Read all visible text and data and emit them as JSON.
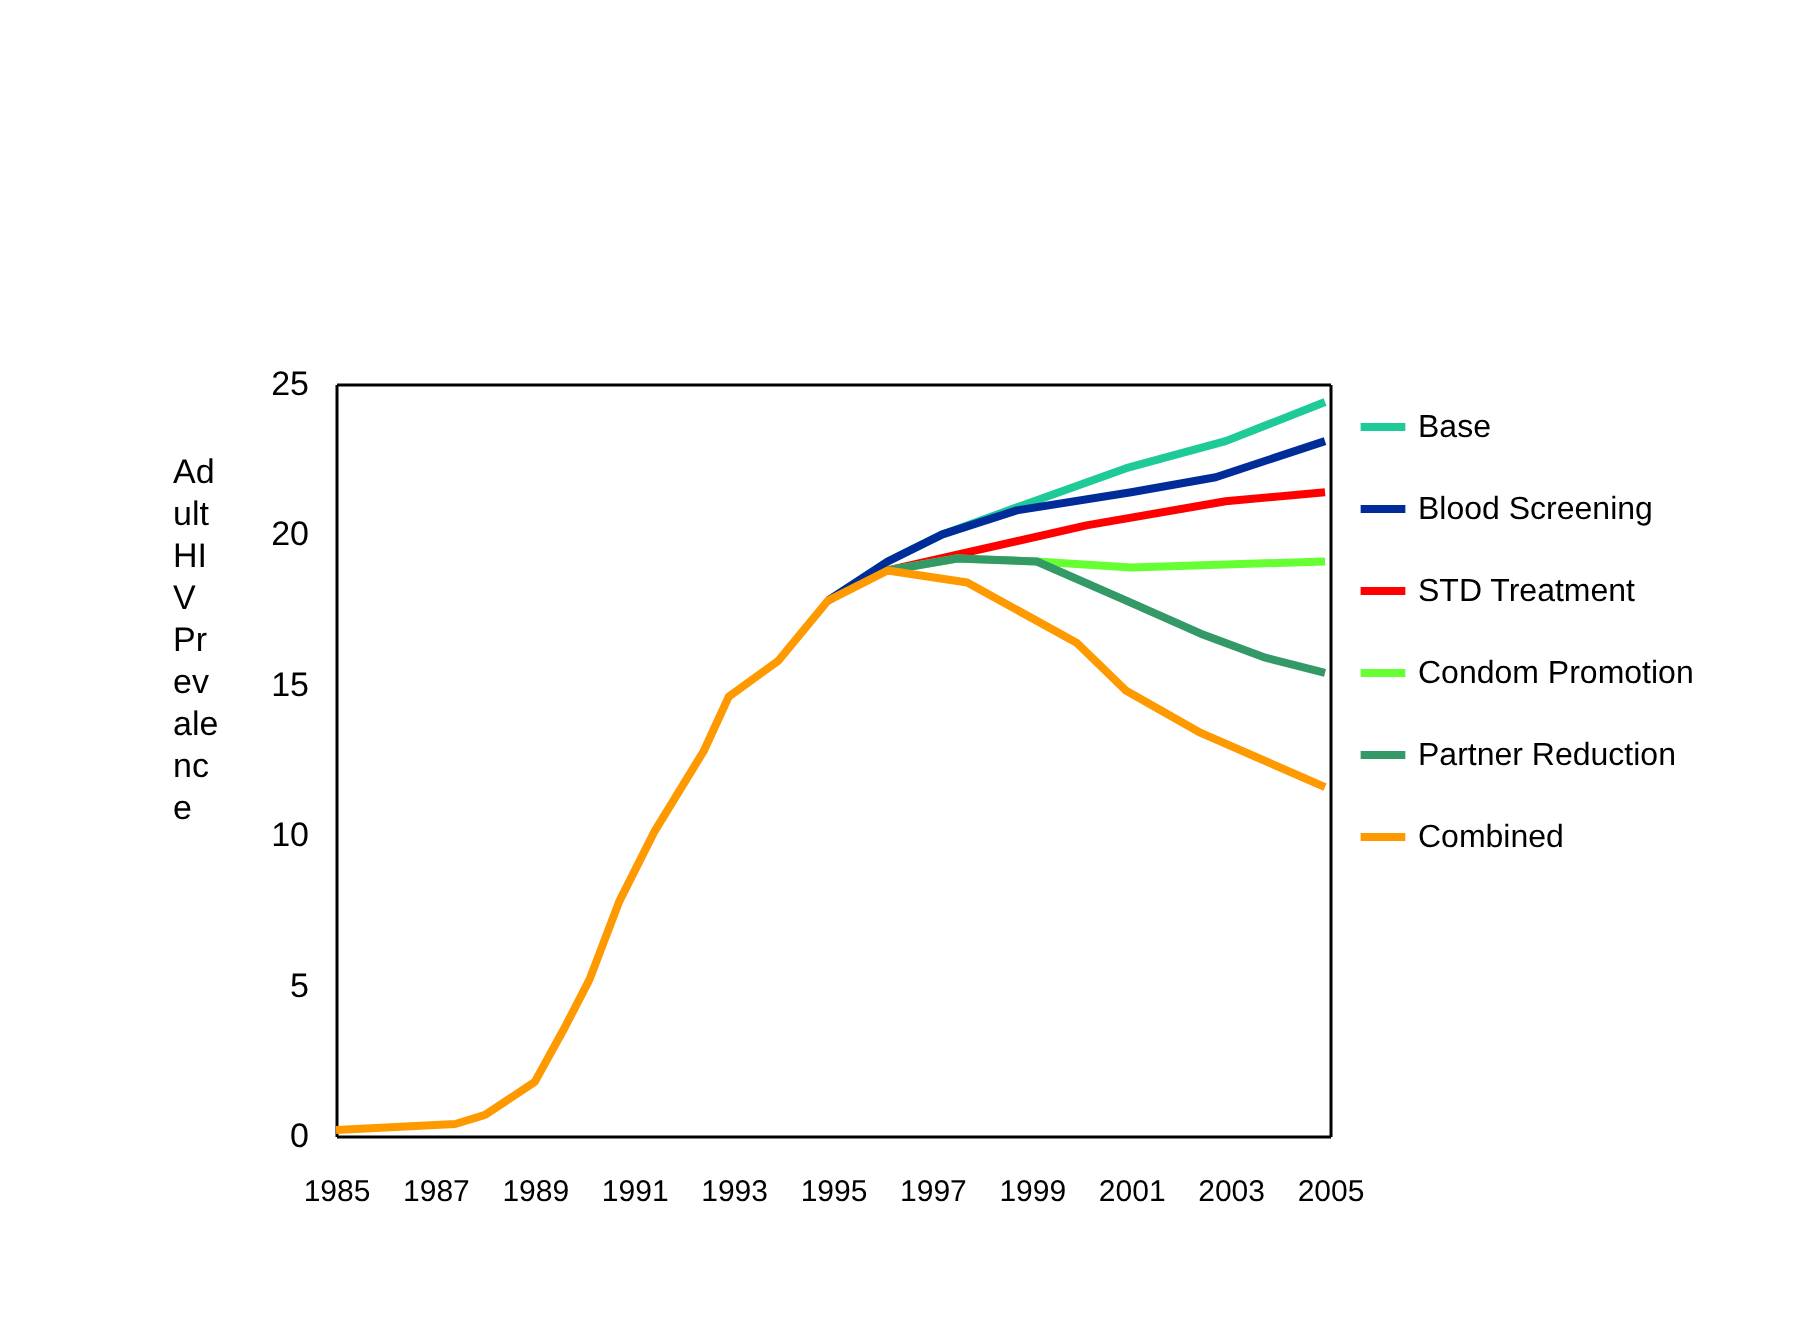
{
  "chart_data": {
    "type": "line",
    "ylabel": "Adult HIV Prevalence",
    "xlim": [
      1985,
      2005
    ],
    "xticks": [
      1985,
      1987,
      1989,
      1991,
      1993,
      1995,
      1997,
      1999,
      2001,
      2003,
      2005
    ],
    "ylim": [
      0,
      25
    ],
    "yticks": [
      0,
      5,
      10,
      15,
      20,
      25
    ],
    "grid": false,
    "legend": "right",
    "marker": "none",
    "line_style": "solid",
    "series": [
      {
        "name": "Base",
        "color": "#1ecb98",
        "x": [
          1994.9,
          1996.1,
          1997.2,
          1998.7,
          2000.9,
          2002.9,
          2004.9
        ],
        "values": [
          17.8,
          19.1,
          20.0,
          20.9,
          22.2,
          23.1,
          24.4
        ]
      },
      {
        "name": "Blood Screening",
        "color": "#002c9a",
        "x": [
          1994.9,
          1996.1,
          1997.2,
          1998.7,
          2001.0,
          2002.7,
          2004.9
        ],
        "values": [
          17.8,
          19.1,
          20.0,
          20.8,
          21.4,
          21.9,
          23.1
        ]
      },
      {
        "name": "STD Treatment",
        "color": "#ff0000",
        "x": [
          1996.1,
          1997.7,
          2000.1,
          2002.9,
          2004.9
        ],
        "values": [
          18.8,
          19.4,
          20.3,
          21.1,
          21.4
        ]
      },
      {
        "name": "Condom Promotion",
        "color": "#66ff33",
        "x": [
          1996.1,
          1997.5,
          1999.1,
          2001.0,
          2004.9
        ],
        "values": [
          18.8,
          19.2,
          19.1,
          18.9,
          19.1
        ]
      },
      {
        "name": "Partner Reduction",
        "color": "#339966",
        "x": [
          1996.1,
          1997.5,
          1999.1,
          2000.9,
          2002.4,
          2003.7,
          2004.9
        ],
        "values": [
          18.8,
          19.2,
          19.1,
          17.8,
          16.7,
          15.9,
          15.4
        ]
      },
      {
        "name": "Combined",
        "color": "#ff9900",
        "x": [
          1985,
          1987.4,
          1988,
          1989,
          1989.6,
          1990.1,
          1990.7,
          1991.4,
          1992.4,
          1992.9,
          1993.9,
          1994.9,
          1996.1,
          1997.7,
          1999.9,
          2000.9,
          2002.4,
          2004.9
        ],
        "values": [
          0.2,
          0.4,
          0.7,
          1.8,
          3.6,
          5.2,
          7.8,
          10.1,
          12.8,
          14.6,
          15.8,
          17.8,
          18.8,
          18.4,
          16.4,
          14.8,
          13.4,
          11.6
        ]
      }
    ]
  }
}
